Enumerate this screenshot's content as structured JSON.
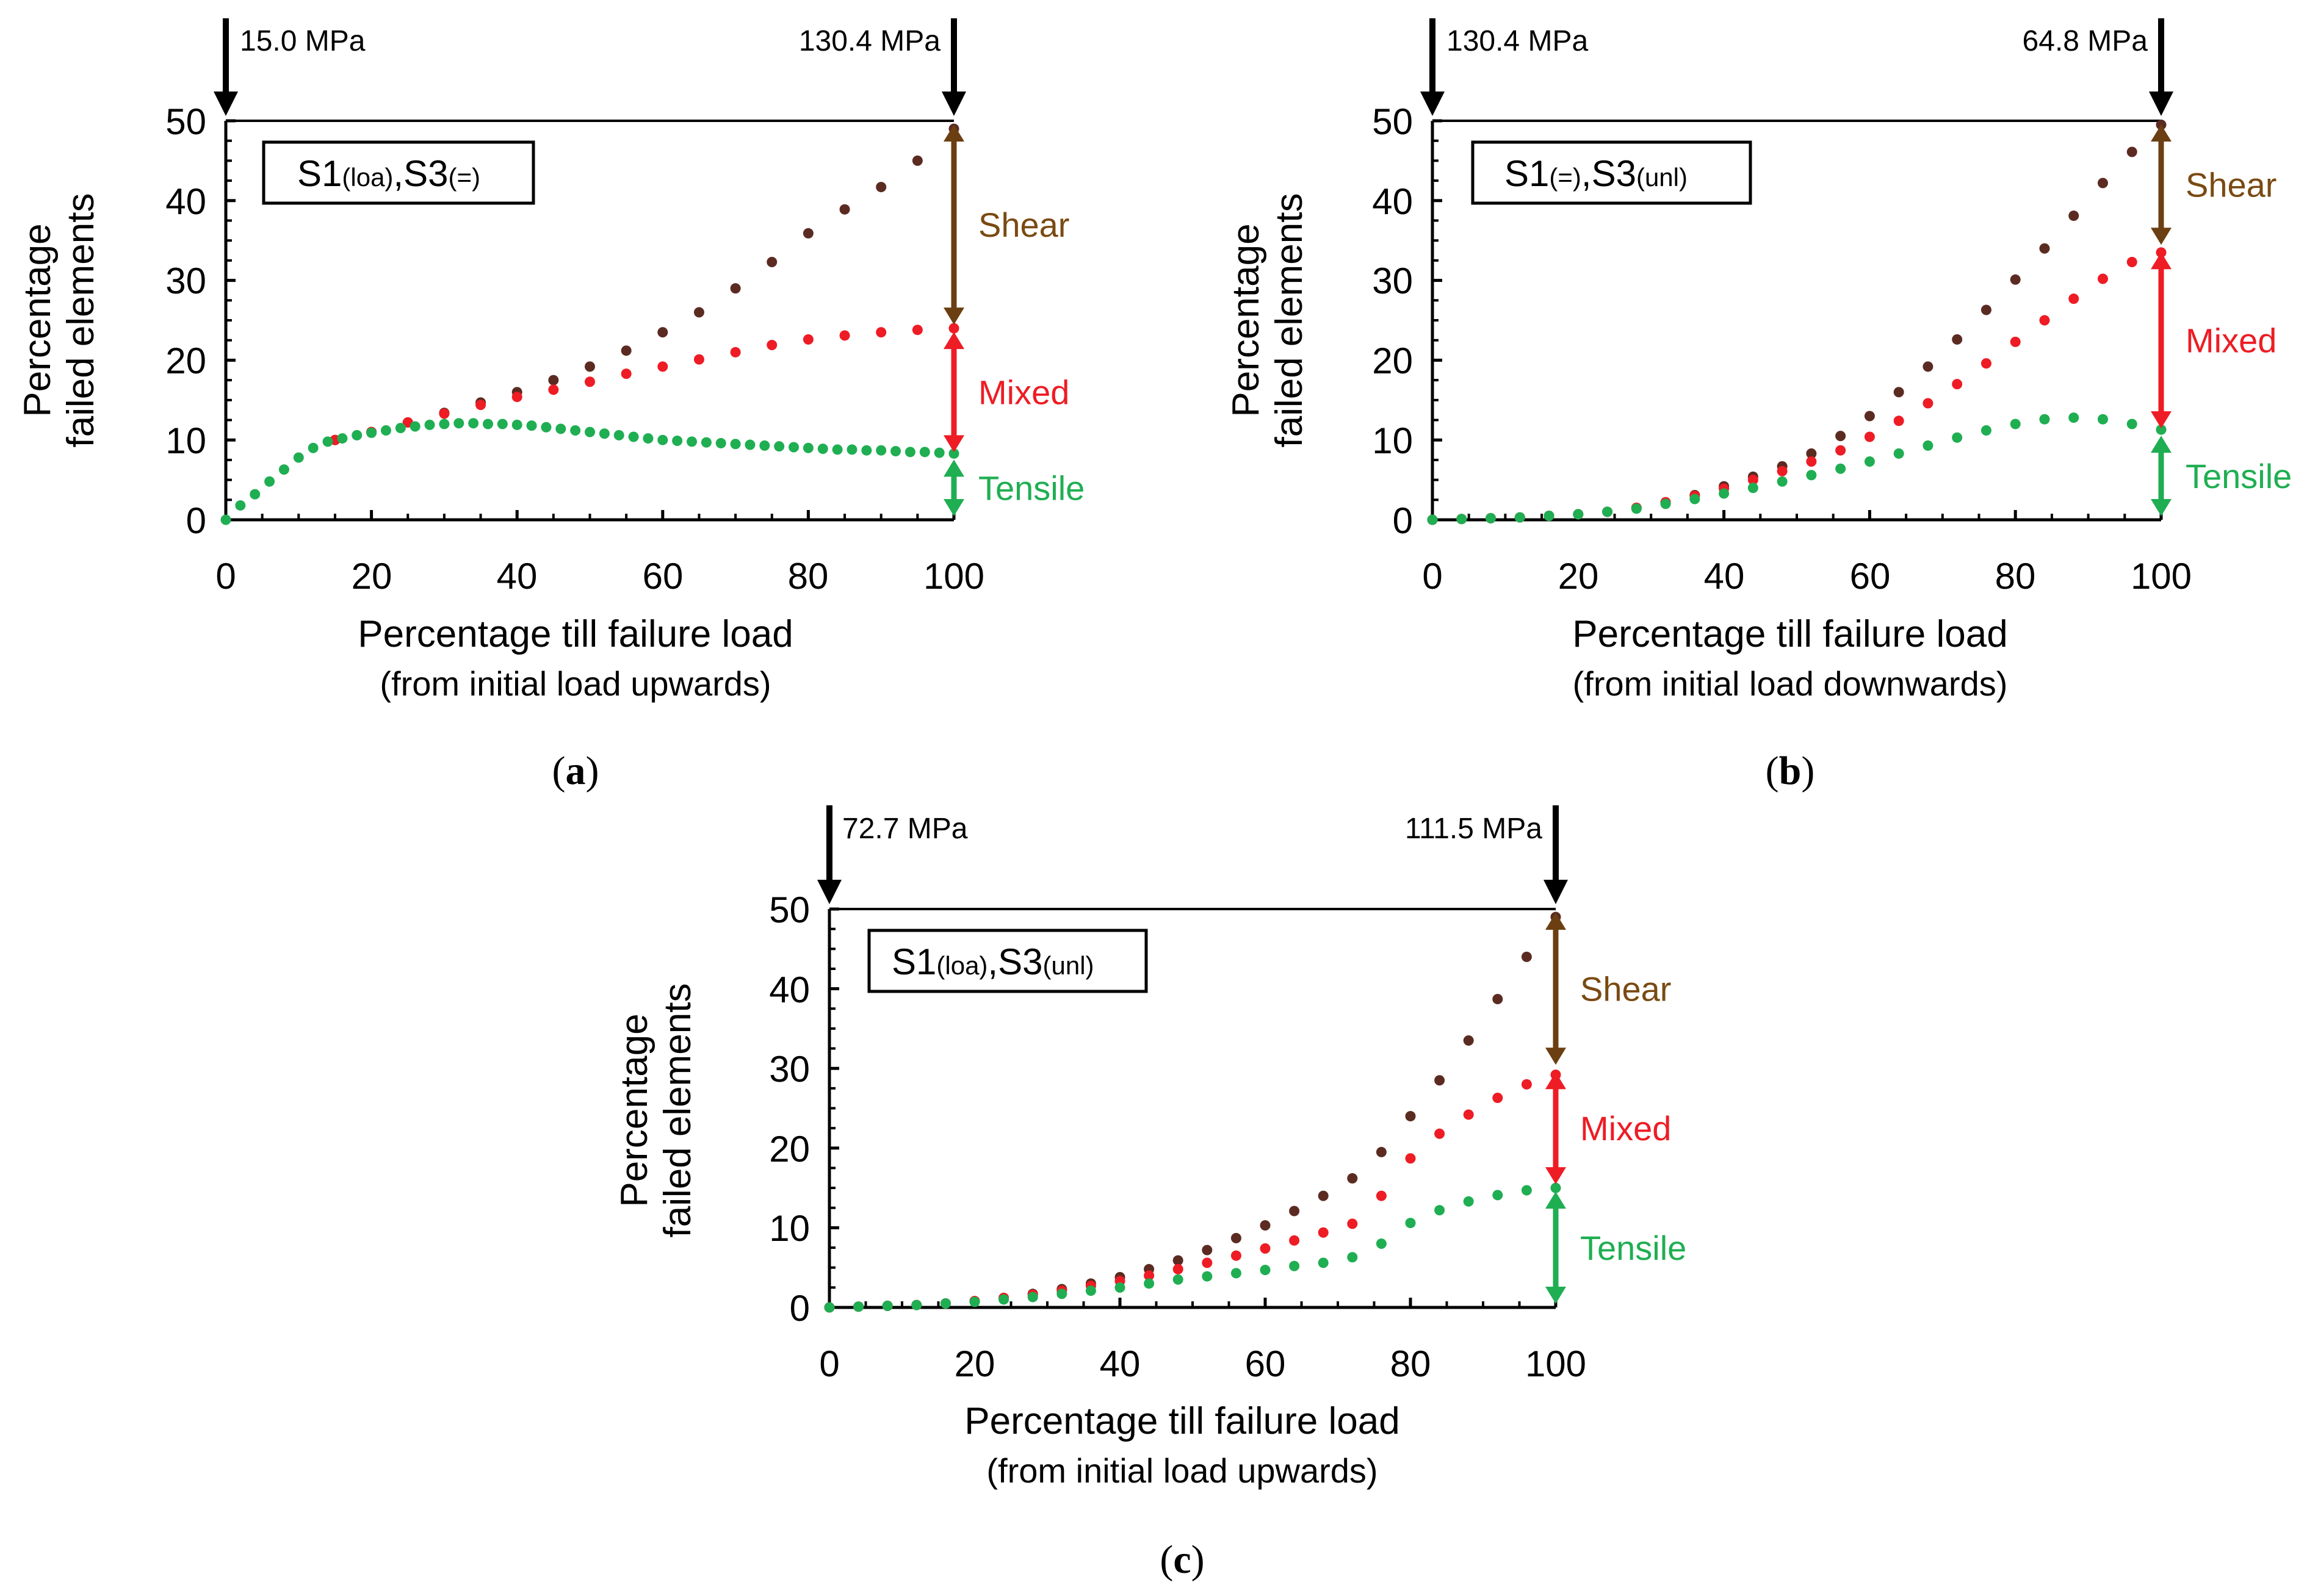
{
  "colors": {
    "shear": "#5b2b22",
    "mixed": "#ee1c24",
    "tensile": "#1fae52",
    "shear_label": "#7a4a12",
    "mixed_label": "#ee1c24",
    "tensile_label": "#1fae52",
    "axis": "#000000"
  },
  "chart_data": [
    {
      "type": "scatter",
      "panel_label": "a",
      "legend_box": {
        "s1": "S1",
        "s1_sub": "(loa)",
        "sep": ",",
        "s3": "S3",
        "s3_sub": "(=)"
      },
      "xlabel": "Percentage till failure load",
      "xlabel_sub": "(from initial load upwards)",
      "ylabel": "Percentage",
      "ylabel_sub": "failed elements",
      "xlim": [
        0,
        100
      ],
      "ylim": [
        0,
        50
      ],
      "xticks": [
        "0",
        "20",
        "40",
        "60",
        "80",
        "100"
      ],
      "yticks": [
        "0",
        "10",
        "20",
        "30",
        "40",
        "50"
      ],
      "stress_left": "15.0 MPa",
      "stress_right": "130.4 MPa",
      "bands": {
        "tensile": "Tensile",
        "mixed": "Mixed",
        "shear": "Shear",
        "tensile_top": 8,
        "mixed_top": 24,
        "shear_top": 50
      },
      "series": [
        {
          "name": "Shear",
          "x": [
            15,
            20,
            25,
            30,
            35,
            40,
            45,
            50,
            55,
            60,
            65,
            70,
            75,
            80,
            85,
            90,
            95,
            100
          ],
          "y": [
            10,
            11,
            12.2,
            13.4,
            14.7,
            16,
            17.5,
            19.2,
            21.2,
            23.5,
            26,
            29,
            32.3,
            35.9,
            38.9,
            41.7,
            45,
            49
          ]
        },
        {
          "name": "Mixed",
          "x": [
            15,
            20,
            25,
            30,
            35,
            40,
            45,
            50,
            55,
            60,
            65,
            70,
            75,
            80,
            85,
            90,
            95,
            100
          ],
          "y": [
            10,
            11,
            12.2,
            13.3,
            14.4,
            15.4,
            16.3,
            17.3,
            18.3,
            19.2,
            20.1,
            21,
            21.9,
            22.6,
            23.1,
            23.5,
            23.8,
            24
          ]
        },
        {
          "name": "Tensile",
          "x": [
            0,
            2,
            4,
            6,
            8,
            10,
            12,
            14,
            16,
            18,
            20,
            22,
            24,
            26,
            28,
            30,
            32,
            34,
            36,
            38,
            40,
            42,
            44,
            46,
            48,
            50,
            52,
            54,
            56,
            58,
            60,
            62,
            64,
            66,
            68,
            70,
            72,
            74,
            76,
            78,
            80,
            82,
            84,
            86,
            88,
            90,
            92,
            94,
            96,
            98,
            100
          ],
          "y": [
            0,
            1.8,
            3.2,
            4.8,
            6.3,
            7.8,
            9,
            9.8,
            10.2,
            10.6,
            10.9,
            11.2,
            11.5,
            11.7,
            11.9,
            12,
            12.1,
            12.1,
            12,
            12,
            11.9,
            11.8,
            11.6,
            11.4,
            11.2,
            11,
            10.8,
            10.6,
            10.4,
            10.2,
            10,
            9.9,
            9.8,
            9.7,
            9.6,
            9.5,
            9.4,
            9.3,
            9.2,
            9.1,
            9,
            8.9,
            8.8,
            8.8,
            8.7,
            8.7,
            8.6,
            8.5,
            8.5,
            8.4,
            8.3
          ]
        }
      ]
    },
    {
      "type": "scatter",
      "panel_label": "b",
      "legend_box": {
        "s1": "S1",
        "s1_sub": "(=)",
        "sep": ",",
        "s3": "S3",
        "s3_sub": "(unl)"
      },
      "xlabel": "Percentage till failure load",
      "xlabel_sub": "(from initial load downwards)",
      "ylabel": "Percentage",
      "ylabel_sub": "failed elements",
      "xlim": [
        0,
        100
      ],
      "ylim": [
        0,
        50
      ],
      "xticks": [
        "0",
        "20",
        "40",
        "60",
        "80",
        "100"
      ],
      "yticks": [
        "0",
        "10",
        "20",
        "30",
        "40",
        "50"
      ],
      "stress_left": "130.4 MPa",
      "stress_right": "64.8 MPa",
      "bands": {
        "tensile": "Tensile",
        "mixed": "Mixed",
        "shear": "Shear",
        "tensile_top": 11,
        "mixed_top": 34,
        "shear_top": 50
      },
      "series": [
        {
          "name": "Shear",
          "x": [
            0,
            4,
            8,
            12,
            16,
            20,
            24,
            28,
            32,
            36,
            40,
            44,
            48,
            52,
            56,
            60,
            64,
            68,
            72,
            76,
            80,
            84,
            88,
            92,
            96,
            100
          ],
          "y": [
            0,
            0.1,
            0.2,
            0.3,
            0.5,
            0.7,
            1,
            1.5,
            2.2,
            3.1,
            4.2,
            5.4,
            6.7,
            8.3,
            10.5,
            13,
            16,
            19.2,
            22.6,
            26.3,
            30.1,
            34,
            38.1,
            42.2,
            46.1,
            49.5
          ]
        },
        {
          "name": "Mixed",
          "x": [
            0,
            4,
            8,
            12,
            16,
            20,
            24,
            28,
            32,
            36,
            40,
            44,
            48,
            52,
            56,
            60,
            64,
            68,
            72,
            76,
            80,
            84,
            88,
            92,
            96,
            100
          ],
          "y": [
            0,
            0.1,
            0.2,
            0.3,
            0.5,
            0.7,
            1,
            1.5,
            2.2,
            3,
            3.9,
            5,
            6.1,
            7.3,
            8.7,
            10.4,
            12.4,
            14.6,
            17,
            19.6,
            22.3,
            25,
            27.7,
            30.2,
            32.3,
            33.5
          ]
        },
        {
          "name": "Tensile",
          "x": [
            0,
            4,
            8,
            12,
            16,
            20,
            24,
            28,
            32,
            36,
            40,
            44,
            48,
            52,
            56,
            60,
            64,
            68,
            72,
            76,
            80,
            84,
            88,
            92,
            96,
            100
          ],
          "y": [
            0,
            0.1,
            0.2,
            0.3,
            0.5,
            0.7,
            1,
            1.4,
            2,
            2.6,
            3.3,
            4,
            4.8,
            5.6,
            6.4,
            7.3,
            8.3,
            9.3,
            10.3,
            11.2,
            12,
            12.6,
            12.8,
            12.6,
            12,
            11.3
          ]
        }
      ]
    },
    {
      "type": "scatter",
      "panel_label": "c",
      "legend_box": {
        "s1": "S1",
        "s1_sub": "(loa)",
        "sep": ",",
        "s3": "S3",
        "s3_sub": "(unl)"
      },
      "xlabel": "Percentage till failure load",
      "xlabel_sub": "(from initial load upwards)",
      "ylabel": "Percentage",
      "ylabel_sub": "failed elements",
      "xlim": [
        0,
        100
      ],
      "ylim": [
        0,
        50
      ],
      "xticks": [
        "0",
        "20",
        "40",
        "60",
        "80",
        "100"
      ],
      "yticks": [
        "0",
        "10",
        "20",
        "30",
        "40",
        "50"
      ],
      "stress_left": "72.7 MPa",
      "stress_right": "111.5 MPa",
      "bands": {
        "tensile": "Tensile",
        "mixed": "Mixed",
        "shear": "Shear",
        "tensile_top": 15,
        "mixed_top": 30,
        "shear_top": 50
      },
      "series": [
        {
          "name": "Shear",
          "x": [
            0,
            4,
            8,
            12,
            16,
            20,
            24,
            28,
            32,
            36,
            40,
            44,
            48,
            52,
            56,
            60,
            64,
            68,
            72,
            76,
            80,
            84,
            88,
            92,
            96,
            100
          ],
          "y": [
            0,
            0.1,
            0.2,
            0.3,
            0.5,
            0.8,
            1.2,
            1.7,
            2.3,
            3,
            3.8,
            4.8,
            5.9,
            7.2,
            8.7,
            10.3,
            12.1,
            14,
            16.2,
            19.5,
            24,
            28.5,
            33.5,
            38.7,
            44,
            49
          ]
        },
        {
          "name": "Mixed",
          "x": [
            0,
            4,
            8,
            12,
            16,
            20,
            24,
            28,
            32,
            36,
            40,
            44,
            48,
            52,
            56,
            60,
            64,
            68,
            72,
            76,
            80,
            84,
            88,
            92,
            96,
            100
          ],
          "y": [
            0,
            0.1,
            0.2,
            0.3,
            0.5,
            0.8,
            1.2,
            1.6,
            2.1,
            2.7,
            3.3,
            4,
            4.8,
            5.6,
            6.5,
            7.4,
            8.4,
            9.4,
            10.5,
            14,
            18.7,
            21.8,
            24.2,
            26.3,
            28,
            29.2
          ]
        },
        {
          "name": "Tensile",
          "x": [
            0,
            4,
            8,
            12,
            16,
            20,
            24,
            28,
            32,
            36,
            40,
            44,
            48,
            52,
            56,
            60,
            64,
            68,
            72,
            76,
            80,
            84,
            88,
            92,
            96,
            100
          ],
          "y": [
            0,
            0.1,
            0.2,
            0.3,
            0.5,
            0.7,
            1,
            1.3,
            1.7,
            2.1,
            2.5,
            3,
            3.5,
            3.9,
            4.3,
            4.7,
            5.2,
            5.6,
            6.3,
            8,
            10.6,
            12.2,
            13.3,
            14.1,
            14.7,
            15
          ]
        }
      ]
    }
  ]
}
